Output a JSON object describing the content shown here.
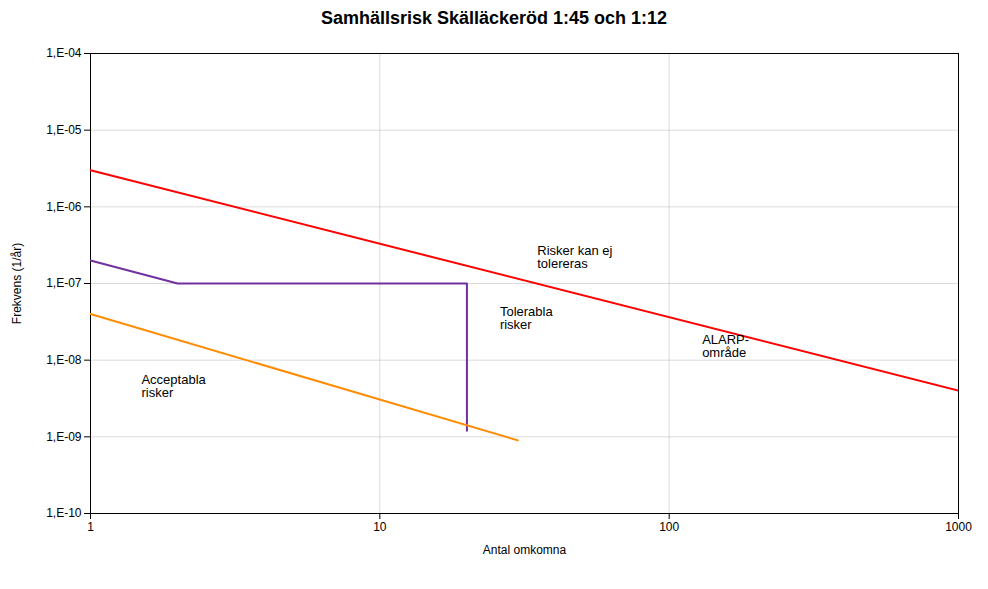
{
  "chart_data": {
    "type": "line",
    "title": "Samhällsrisk Skälläckeröd 1:45 och 1:12",
    "xlabel": "Antal omkomna",
    "ylabel": "Frekvens (1/år)",
    "log": true,
    "grid": true,
    "xlim": [
      1,
      1000
    ],
    "ylim": [
      1e-10,
      0.0001
    ],
    "xticks": [
      1,
      10,
      100,
      1000
    ],
    "yticks": [
      {
        "value": 1e-10,
        "label": "1,E-10"
      },
      {
        "value": 1e-09,
        "label": "1,E-09"
      },
      {
        "value": 1e-08,
        "label": "1,E-08"
      },
      {
        "value": 1e-07,
        "label": "1,E-07"
      },
      {
        "value": 1e-06,
        "label": "1,E-06"
      },
      {
        "value": 1e-05,
        "label": "1,E-05"
      },
      {
        "value": 0.0001,
        "label": "1,E-04"
      }
    ],
    "series": [
      {
        "color": "#FF0000",
        "x": [
          1,
          1000
        ],
        "values": [
          3e-06,
          4e-09
        ]
      },
      {
        "color": "#7030A0",
        "x": [
          1,
          2,
          20,
          20
        ],
        "values": [
          2e-07,
          1e-07,
          1e-07,
          1.2e-09
        ]
      },
      {
        "color": "#FF8C00",
        "x": [
          1,
          30
        ],
        "values": [
          4e-08,
          9e-10
        ]
      }
    ],
    "annotations": [
      {
        "text": "Risker kan ej\ntolereras",
        "x": 35,
        "y": 2.2e-07
      },
      {
        "text": "Tolerabla\nrisker",
        "x": 26,
        "y": 3.5e-08
      },
      {
        "text": "ALARP-\nområde",
        "x": 130,
        "y": 1.5e-08
      },
      {
        "text": "Acceptabla\nrisker",
        "x": 1.5,
        "y": 4.5e-09
      }
    ]
  }
}
